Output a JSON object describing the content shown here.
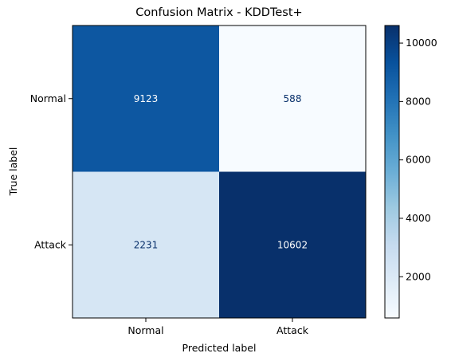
{
  "chart_data": {
    "type": "heatmap",
    "title": "Confusion Matrix - KDDTest+",
    "xlabel": "Predicted label",
    "ylabel": "True label",
    "x_categories": [
      "Normal",
      "Attack"
    ],
    "y_categories": [
      "Normal",
      "Attack"
    ],
    "values": [
      [
        9123,
        588
      ],
      [
        2231,
        10602
      ]
    ],
    "colormap": "Blues",
    "colorbar": {
      "ticks": [
        2000,
        4000,
        6000,
        8000,
        10000
      ],
      "range": [
        588,
        10602
      ]
    },
    "colors": {
      "dark_text": "#08306b",
      "light_text": "#ffffff"
    }
  }
}
